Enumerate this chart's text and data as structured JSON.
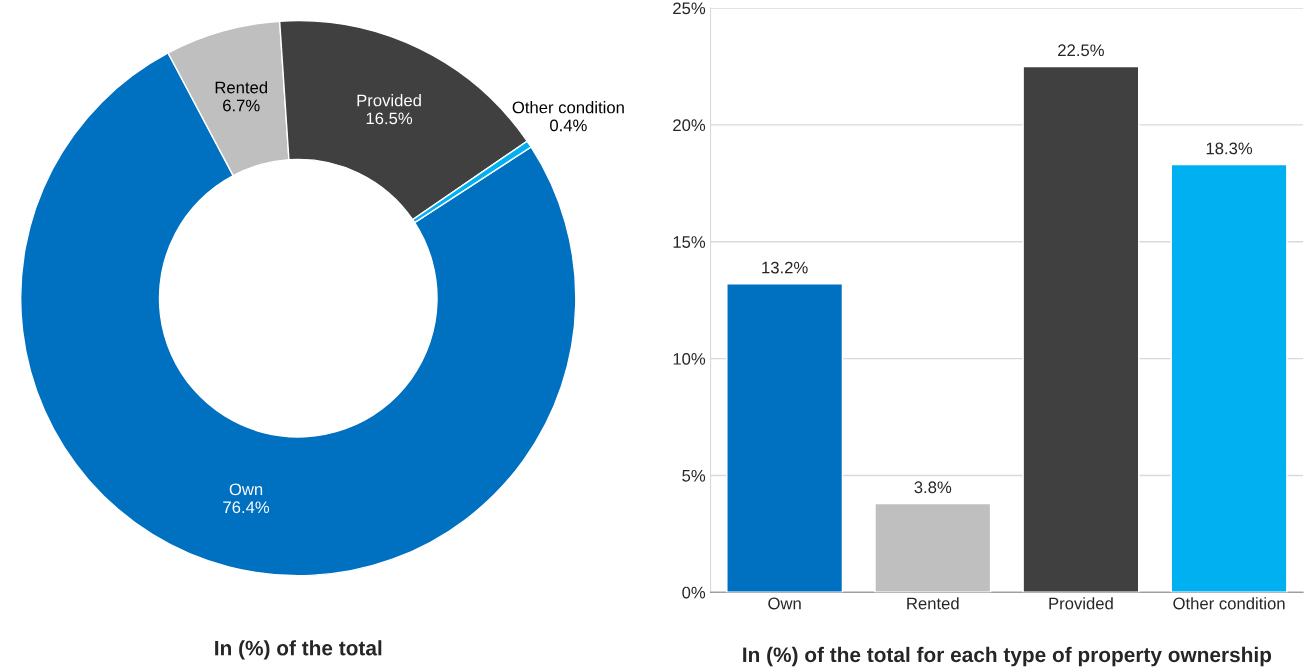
{
  "chart_data": [
    {
      "type": "donut",
      "title": "In (%) of the total",
      "categories": [
        "Own",
        "Rented",
        "Provided",
        "Other condition"
      ],
      "values": [
        76.4,
        6.7,
        16.5,
        0.4
      ],
      "value_labels": [
        "76.4%",
        "6.7%",
        "16.5%",
        "0.4%"
      ],
      "colors": [
        "#0070c0",
        "#bfbfbf",
        "#404040",
        "#00b0f0"
      ]
    },
    {
      "type": "bar",
      "title": "In (%) of the total for each type of property ownership",
      "categories": [
        "Own",
        "Rented",
        "Provided",
        "Other condition"
      ],
      "values": [
        13.2,
        3.8,
        22.5,
        18.3
      ],
      "value_labels": [
        "13.2%",
        "3.8%",
        "22.5%",
        "18.3%"
      ],
      "colors": [
        "#0070c0",
        "#bfbfbf",
        "#404040",
        "#00b0f0"
      ],
      "ylim": [
        0,
        25
      ],
      "yticks": [
        {
          "value": 0,
          "label": "0%"
        },
        {
          "value": 5,
          "label": "5%"
        },
        {
          "value": 10,
          "label": "10%"
        },
        {
          "value": 15,
          "label": "15%"
        },
        {
          "value": 20,
          "label": "20%"
        },
        {
          "value": 25,
          "label": "25%"
        }
      ],
      "grid": "y"
    }
  ]
}
